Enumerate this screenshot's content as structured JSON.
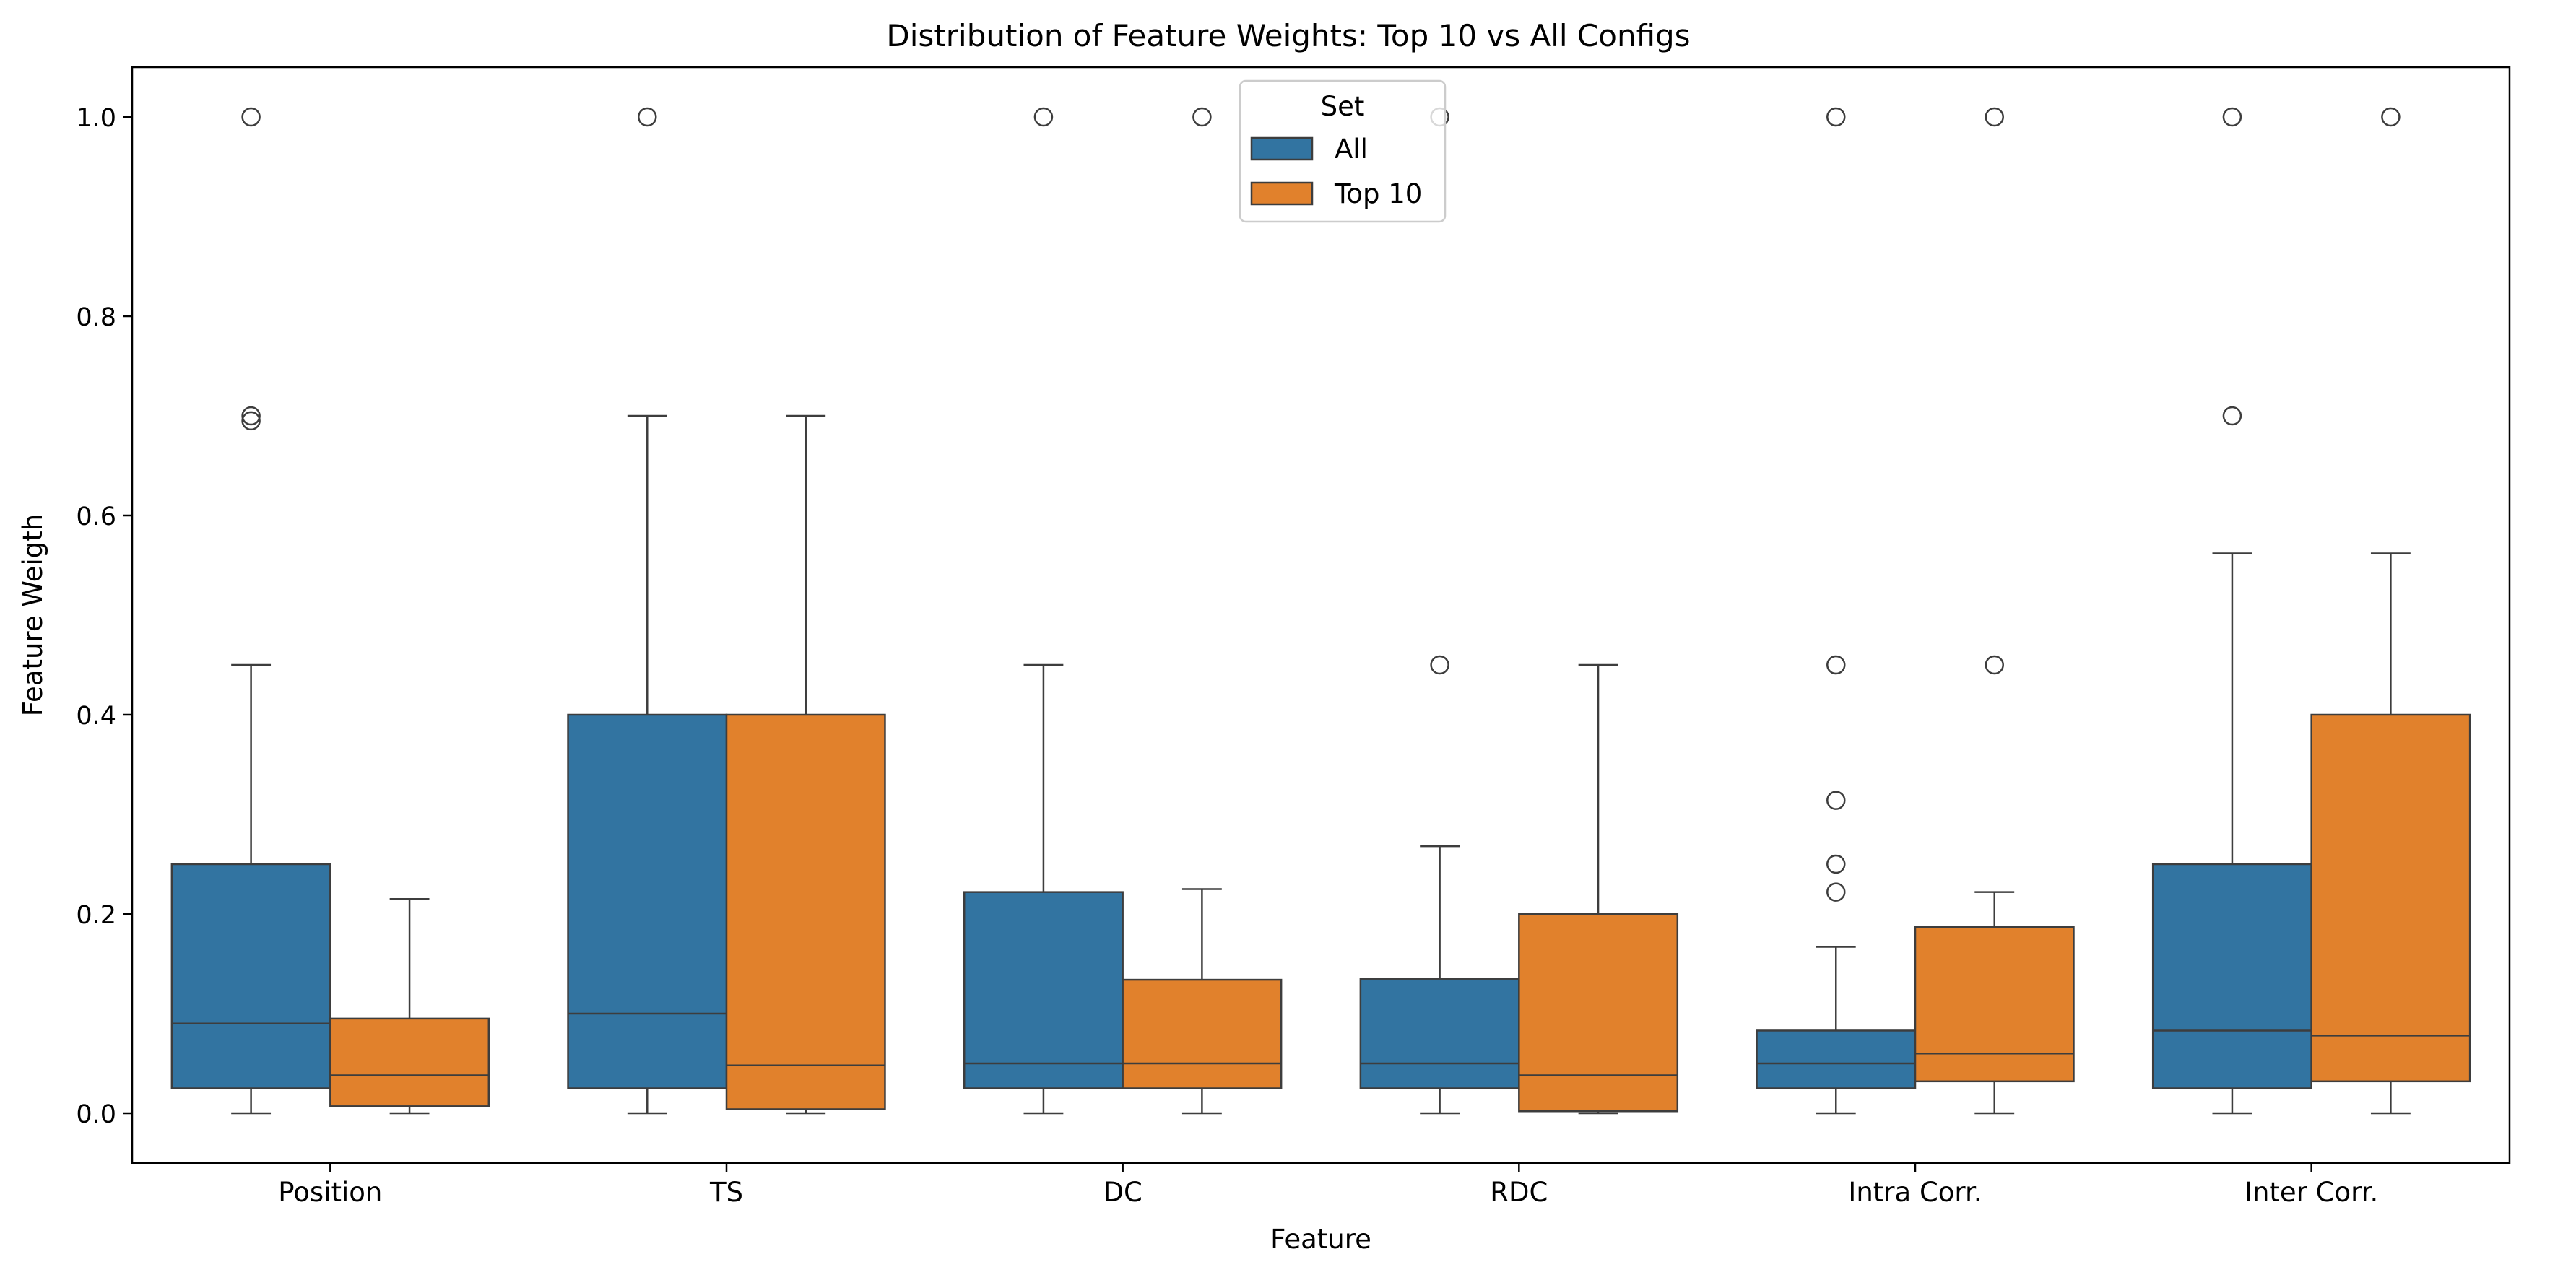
{
  "chart_data": {
    "type": "box",
    "title": "Distribution of Feature Weights: Top 10 vs All Configs",
    "xlabel": "Feature",
    "ylabel": "Feature Weigth",
    "ylim": [
      -0.05,
      1.05
    ],
    "yticks": [
      0.0,
      0.2,
      0.4,
      0.6,
      0.8,
      1.0
    ],
    "ytick_labels": [
      "0.0",
      "0.2",
      "0.4",
      "0.6",
      "0.8",
      "1.0"
    ],
    "grid": false,
    "categories": [
      "Position",
      "TS",
      "DC",
      "RDC",
      "Intra Corr.",
      "Inter Corr."
    ],
    "legend": {
      "title": "Set",
      "position": "top-center"
    },
    "series": [
      {
        "name": "All",
        "color": "#3274a1",
        "boxes": [
          {
            "whislo": 0.0,
            "q1": 0.025,
            "med": 0.09,
            "q3": 0.25,
            "whishi": 0.45,
            "fliers": [
              0.695,
              0.7,
              1.0
            ]
          },
          {
            "whislo": 0.0,
            "q1": 0.025,
            "med": 0.1,
            "q3": 0.4,
            "whishi": 0.7,
            "fliers": [
              1.0
            ]
          },
          {
            "whislo": 0.0,
            "q1": 0.025,
            "med": 0.05,
            "q3": 0.222,
            "whishi": 0.45,
            "fliers": [
              1.0
            ]
          },
          {
            "whislo": 0.0,
            "q1": 0.025,
            "med": 0.05,
            "q3": 0.135,
            "whishi": 0.268,
            "fliers": [
              0.45,
              1.0
            ]
          },
          {
            "whislo": 0.0,
            "q1": 0.025,
            "med": 0.05,
            "q3": 0.083,
            "whishi": 0.167,
            "fliers": [
              0.222,
              0.25,
              0.314,
              0.45,
              1.0
            ]
          },
          {
            "whislo": 0.0,
            "q1": 0.025,
            "med": 0.083,
            "q3": 0.25,
            "whishi": 0.562,
            "fliers": [
              0.7,
              1.0
            ]
          }
        ]
      },
      {
        "name": "Top 10",
        "color": "#e1812c",
        "boxes": [
          {
            "whislo": 0.0,
            "q1": 0.007,
            "med": 0.038,
            "q3": 0.095,
            "whishi": 0.215,
            "fliers": []
          },
          {
            "whislo": 0.0,
            "q1": 0.004,
            "med": 0.048,
            "q3": 0.4,
            "whishi": 0.7,
            "fliers": []
          },
          {
            "whislo": 0.0,
            "q1": 0.025,
            "med": 0.05,
            "q3": 0.134,
            "whishi": 0.225,
            "fliers": [
              1.0
            ]
          },
          {
            "whislo": 0.0,
            "q1": 0.002,
            "med": 0.038,
            "q3": 0.2,
            "whishi": 0.45,
            "fliers": []
          },
          {
            "whislo": 0.0,
            "q1": 0.032,
            "med": 0.06,
            "q3": 0.187,
            "whishi": 0.222,
            "fliers": [
              0.45,
              1.0
            ]
          },
          {
            "whislo": 0.0,
            "q1": 0.032,
            "med": 0.078,
            "q3": 0.4,
            "whishi": 0.562,
            "fliers": [
              1.0
            ]
          }
        ]
      }
    ]
  }
}
